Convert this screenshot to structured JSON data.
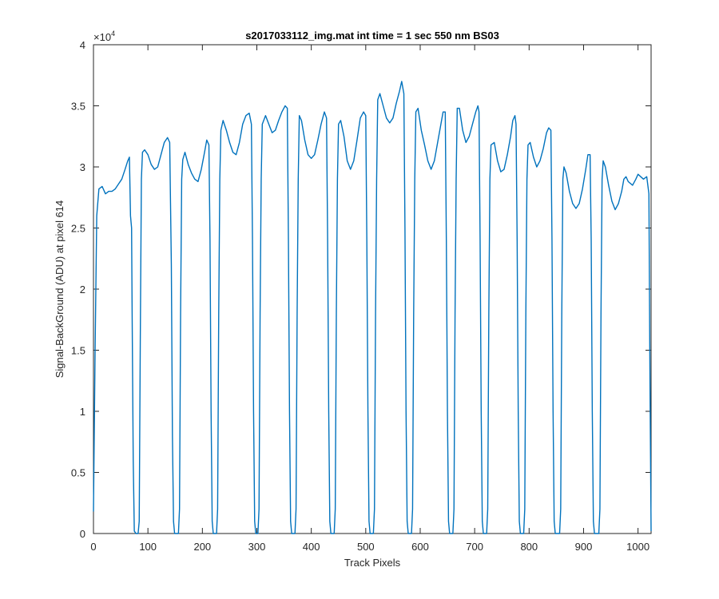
{
  "chart_data": {
    "type": "line",
    "title": "s2017033112_img.mat int time = 1 sec  550 nm BS03",
    "xlabel": "Track Pixels",
    "ylabel": "Signal-BackGround (ADU) at pixel 614",
    "xlim": [
      0,
      1024
    ],
    "ylim": [
      0,
      4
    ],
    "y_exponent_label": "×10",
    "y_exponent_power": "4",
    "x_ticks": [
      0,
      100,
      200,
      300,
      400,
      500,
      600,
      700,
      800,
      900,
      1000
    ],
    "x_tick_labels": [
      "0",
      "100",
      "200",
      "300",
      "400",
      "500",
      "600",
      "700",
      "800",
      "900",
      "1000"
    ],
    "y_ticks": [
      0,
      0.5,
      1,
      1.5,
      2,
      2.5,
      3,
      3.5,
      4
    ],
    "y_tick_labels": [
      "0",
      "0.5",
      "1",
      "1.5",
      "2",
      "2.5",
      "3",
      "3.5",
      "4"
    ],
    "grid": false,
    "line_color": "#0072BD",
    "series": [
      {
        "values": [
          [
            0,
            0.18
          ],
          [
            3,
            1.5
          ],
          [
            6,
            2.6
          ],
          [
            10,
            2.82
          ],
          [
            16,
            2.84
          ],
          [
            22,
            2.78
          ],
          [
            28,
            2.8
          ],
          [
            34,
            2.8
          ],
          [
            40,
            2.82
          ],
          [
            46,
            2.86
          ],
          [
            52,
            2.9
          ],
          [
            58,
            2.98
          ],
          [
            63,
            3.05
          ],
          [
            66,
            3.08
          ],
          [
            68,
            2.6
          ],
          [
            70,
            2.5
          ],
          [
            71,
            1.8
          ],
          [
            73,
            0.6
          ],
          [
            75,
            0.02
          ],
          [
            78,
            0.0
          ],
          [
            82,
            0.0
          ],
          [
            84,
            0.1
          ],
          [
            86,
            1.6
          ],
          [
            88,
            2.9
          ],
          [
            90,
            3.12
          ],
          [
            94,
            3.14
          ],
          [
            100,
            3.1
          ],
          [
            106,
            3.02
          ],
          [
            112,
            2.98
          ],
          [
            118,
            3.0
          ],
          [
            124,
            3.1
          ],
          [
            130,
            3.2
          ],
          [
            136,
            3.24
          ],
          [
            140,
            3.2
          ],
          [
            143,
            2.2
          ],
          [
            145,
            0.8
          ],
          [
            147,
            0.1
          ],
          [
            149,
            0.0
          ],
          [
            156,
            0.0
          ],
          [
            158,
            0.2
          ],
          [
            160,
            1.8
          ],
          [
            162,
            2.9
          ],
          [
            164,
            3.06
          ],
          [
            168,
            3.12
          ],
          [
            174,
            3.02
          ],
          [
            180,
            2.95
          ],
          [
            186,
            2.9
          ],
          [
            192,
            2.88
          ],
          [
            198,
            2.98
          ],
          [
            204,
            3.12
          ],
          [
            208,
            3.22
          ],
          [
            212,
            3.18
          ],
          [
            214,
            2.4
          ],
          [
            216,
            1.0
          ],
          [
            218,
            0.1
          ],
          [
            220,
            0.0
          ],
          [
            226,
            0.0
          ],
          [
            228,
            0.2
          ],
          [
            230,
            1.8
          ],
          [
            232,
            2.9
          ],
          [
            234,
            3.3
          ],
          [
            238,
            3.38
          ],
          [
            244,
            3.3
          ],
          [
            250,
            3.2
          ],
          [
            256,
            3.12
          ],
          [
            262,
            3.1
          ],
          [
            268,
            3.2
          ],
          [
            274,
            3.35
          ],
          [
            280,
            3.42
          ],
          [
            286,
            3.44
          ],
          [
            290,
            3.35
          ],
          [
            292,
            2.4
          ],
          [
            294,
            1.0
          ],
          [
            296,
            0.1
          ],
          [
            298,
            0.0
          ],
          [
            302,
            0.0
          ],
          [
            304,
            0.2
          ],
          [
            306,
            1.8
          ],
          [
            308,
            2.9
          ],
          [
            310,
            3.35
          ],
          [
            316,
            3.42
          ],
          [
            322,
            3.35
          ],
          [
            328,
            3.28
          ],
          [
            334,
            3.3
          ],
          [
            340,
            3.38
          ],
          [
            346,
            3.45
          ],
          [
            352,
            3.5
          ],
          [
            356,
            3.48
          ],
          [
            358,
            2.4
          ],
          [
            360,
            1.0
          ],
          [
            362,
            0.1
          ],
          [
            364,
            0.0
          ],
          [
            370,
            0.0
          ],
          [
            372,
            0.2
          ],
          [
            374,
            1.8
          ],
          [
            376,
            2.9
          ],
          [
            378,
            3.42
          ],
          [
            382,
            3.38
          ],
          [
            388,
            3.22
          ],
          [
            394,
            3.1
          ],
          [
            400,
            3.07
          ],
          [
            406,
            3.1
          ],
          [
            412,
            3.22
          ],
          [
            418,
            3.35
          ],
          [
            424,
            3.45
          ],
          [
            428,
            3.4
          ],
          [
            430,
            2.4
          ],
          [
            432,
            1.0
          ],
          [
            434,
            0.1
          ],
          [
            436,
            0.0
          ],
          [
            442,
            0.0
          ],
          [
            444,
            0.2
          ],
          [
            446,
            1.8
          ],
          [
            448,
            2.9
          ],
          [
            450,
            3.35
          ],
          [
            454,
            3.38
          ],
          [
            460,
            3.25
          ],
          [
            466,
            3.05
          ],
          [
            472,
            2.98
          ],
          [
            478,
            3.05
          ],
          [
            484,
            3.22
          ],
          [
            490,
            3.4
          ],
          [
            496,
            3.45
          ],
          [
            500,
            3.42
          ],
          [
            502,
            2.4
          ],
          [
            504,
            1.0
          ],
          [
            506,
            0.1
          ],
          [
            508,
            0.0
          ],
          [
            514,
            0.0
          ],
          [
            516,
            0.2
          ],
          [
            518,
            1.8
          ],
          [
            520,
            2.9
          ],
          [
            522,
            3.55
          ],
          [
            526,
            3.6
          ],
          [
            532,
            3.5
          ],
          [
            538,
            3.4
          ],
          [
            544,
            3.36
          ],
          [
            550,
            3.4
          ],
          [
            556,
            3.52
          ],
          [
            562,
            3.62
          ],
          [
            566,
            3.7
          ],
          [
            570,
            3.6
          ],
          [
            572,
            2.5
          ],
          [
            574,
            1.0
          ],
          [
            576,
            0.1
          ],
          [
            578,
            0.0
          ],
          [
            584,
            0.0
          ],
          [
            586,
            0.2
          ],
          [
            588,
            1.8
          ],
          [
            590,
            2.9
          ],
          [
            592,
            3.45
          ],
          [
            596,
            3.48
          ],
          [
            602,
            3.3
          ],
          [
            608,
            3.18
          ],
          [
            614,
            3.05
          ],
          [
            620,
            2.98
          ],
          [
            626,
            3.05
          ],
          [
            632,
            3.2
          ],
          [
            638,
            3.35
          ],
          [
            642,
            3.45
          ],
          [
            646,
            3.45
          ],
          [
            648,
            2.4
          ],
          [
            650,
            1.0
          ],
          [
            652,
            0.1
          ],
          [
            654,
            0.0
          ],
          [
            660,
            0.0
          ],
          [
            662,
            0.2
          ],
          [
            664,
            1.8
          ],
          [
            666,
            2.9
          ],
          [
            668,
            3.48
          ],
          [
            672,
            3.48
          ],
          [
            678,
            3.3
          ],
          [
            684,
            3.2
          ],
          [
            690,
            3.25
          ],
          [
            696,
            3.35
          ],
          [
            702,
            3.45
          ],
          [
            706,
            3.5
          ],
          [
            708,
            3.45
          ],
          [
            710,
            2.4
          ],
          [
            712,
            1.0
          ],
          [
            714,
            0.1
          ],
          [
            716,
            0.0
          ],
          [
            722,
            0.0
          ],
          [
            724,
            0.2
          ],
          [
            726,
            1.8
          ],
          [
            728,
            2.9
          ],
          [
            730,
            3.18
          ],
          [
            736,
            3.2
          ],
          [
            742,
            3.05
          ],
          [
            748,
            2.96
          ],
          [
            754,
            2.98
          ],
          [
            760,
            3.1
          ],
          [
            766,
            3.25
          ],
          [
            770,
            3.38
          ],
          [
            774,
            3.42
          ],
          [
            776,
            3.35
          ],
          [
            778,
            2.4
          ],
          [
            780,
            1.0
          ],
          [
            782,
            0.1
          ],
          [
            784,
            0.0
          ],
          [
            790,
            0.0
          ],
          [
            792,
            0.2
          ],
          [
            794,
            1.8
          ],
          [
            796,
            2.9
          ],
          [
            798,
            3.18
          ],
          [
            802,
            3.2
          ],
          [
            808,
            3.08
          ],
          [
            814,
            3.0
          ],
          [
            820,
            3.05
          ],
          [
            826,
            3.15
          ],
          [
            832,
            3.28
          ],
          [
            836,
            3.32
          ],
          [
            840,
            3.3
          ],
          [
            842,
            2.4
          ],
          [
            844,
            1.0
          ],
          [
            846,
            0.1
          ],
          [
            848,
            0.0
          ],
          [
            856,
            0.0
          ],
          [
            858,
            0.2
          ],
          [
            860,
            1.8
          ],
          [
            862,
            2.9
          ],
          [
            864,
            3.0
          ],
          [
            868,
            2.95
          ],
          [
            874,
            2.8
          ],
          [
            880,
            2.7
          ],
          [
            886,
            2.66
          ],
          [
            892,
            2.7
          ],
          [
            898,
            2.82
          ],
          [
            904,
            2.98
          ],
          [
            908,
            3.1
          ],
          [
            912,
            3.1
          ],
          [
            914,
            2.4
          ],
          [
            916,
            1.0
          ],
          [
            918,
            0.1
          ],
          [
            920,
            0.0
          ],
          [
            928,
            0.0
          ],
          [
            930,
            0.2
          ],
          [
            932,
            1.8
          ],
          [
            934,
            2.9
          ],
          [
            936,
            3.05
          ],
          [
            940,
            3.0
          ],
          [
            946,
            2.85
          ],
          [
            952,
            2.72
          ],
          [
            958,
            2.65
          ],
          [
            964,
            2.7
          ],
          [
            970,
            2.8
          ],
          [
            974,
            2.9
          ],
          [
            978,
            2.92
          ],
          [
            982,
            2.88
          ],
          [
            990,
            2.85
          ],
          [
            996,
            2.9
          ],
          [
            1000,
            2.94
          ],
          [
            1010,
            2.9
          ],
          [
            1016,
            2.92
          ],
          [
            1020,
            2.78
          ],
          [
            1022,
            1.2
          ],
          [
            1024,
            0.02
          ]
        ]
      }
    ]
  }
}
